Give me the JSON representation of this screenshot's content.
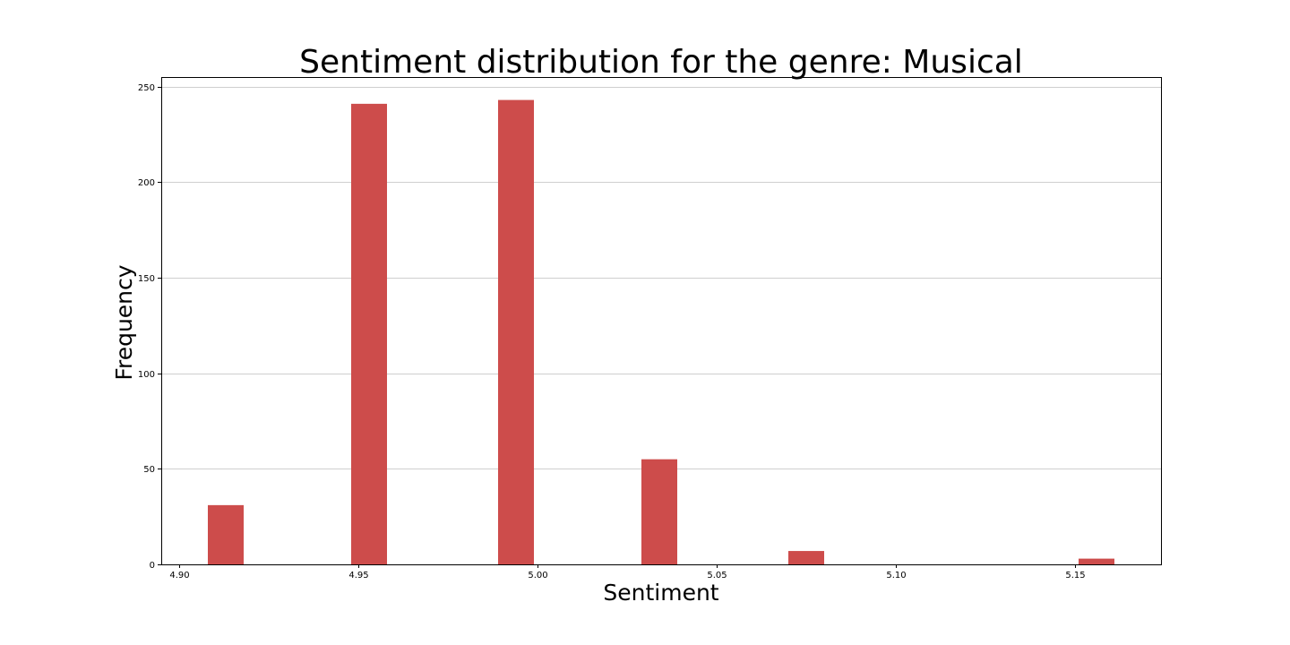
{
  "chart_data": {
    "type": "bar",
    "title": "Sentiment distribution for the genre: Musical",
    "xlabel": "Sentiment",
    "ylabel": "Frequency",
    "xlim": [
      4.895,
      5.174
    ],
    "ylim": [
      0,
      255
    ],
    "xticks": [
      4.9,
      4.95,
      5.0,
      5.05,
      5.1,
      5.15
    ],
    "xtick_labels": [
      "4.90",
      "4.95",
      "5.00",
      "5.05",
      "5.10",
      "5.15"
    ],
    "yticks": [
      0,
      50,
      100,
      150,
      200,
      250
    ],
    "ytick_labels": [
      "0",
      "50",
      "100",
      "150",
      "200",
      "250"
    ],
    "bar_width": 0.01,
    "color": "#cd4c4b",
    "grid": "y",
    "bars": [
      {
        "x": 4.913,
        "value": 31
      },
      {
        "x": 4.953,
        "value": 241
      },
      {
        "x": 4.994,
        "value": 243
      },
      {
        "x": 5.034,
        "value": 55
      },
      {
        "x": 5.075,
        "value": 7
      },
      {
        "x": 5.156,
        "value": 3
      }
    ]
  }
}
